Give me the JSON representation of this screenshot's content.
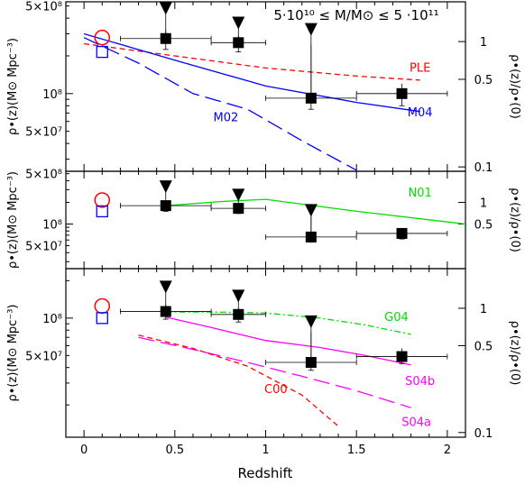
{
  "chart_data": {
    "type": "scatter",
    "x_axis": {
      "label": "Redshift",
      "range": [
        -0.1,
        2.1
      ],
      "ticks": [
        0,
        0.5,
        1,
        1.5,
        2
      ],
      "tick_labels": [
        "0",
        "0.5",
        "1",
        "1.5",
        "2"
      ]
    },
    "right_axis": {
      "label": "ρ•(z)/ρ•(0)",
      "tick_values": [
        1,
        0.5,
        0.1
      ],
      "tick_labels": [
        "1",
        "0.5",
        "0.1"
      ]
    },
    "panels": [
      {
        "title": "5·10¹⁰ ≤ M/M⊙ ≤ 5 ·10¹¹",
        "ylabel": "ρ•(z)(M⊙ Mpc⁻³)",
        "ylim": [
          24000000,
          540000000
        ],
        "left_ticks": [
          {
            "value": 500000000,
            "label": "5×10⁸"
          },
          {
            "value": 100000000,
            "label": "10⁸"
          },
          {
            "value": 50000000,
            "label": "5×10⁷"
          }
        ],
        "right_ticks": [
          {
            "value": 260000000,
            "label": "1"
          },
          {
            "value": 130000000,
            "label": "0.5"
          },
          {
            "value": 26000000,
            "label": "0.1"
          }
        ],
        "local_circle": {
          "x": 0.1,
          "y": 280000000
        },
        "local_square": {
          "x": 0.1,
          "y": 215000000
        },
        "points": [
          {
            "x": 0.45,
            "y": 275000000,
            "xerr": [
              0.2,
              0.7
            ],
            "yerr": [
              225000000,
              320000000
            ],
            "upper": 470000000
          },
          {
            "x": 0.85,
            "y": 255000000,
            "xerr": [
              0.7,
              1.0
            ],
            "yerr": [
              215000000,
              290000000
            ],
            "upper": 360000000
          },
          {
            "x": 1.25,
            "y": 92000000,
            "xerr": [
              1.0,
              1.5
            ],
            "yerr": [
              75000000,
              245000000
            ],
            "upper": 320000000
          },
          {
            "x": 1.75,
            "y": 100000000,
            "xerr": [
              1.5,
              2.0
            ],
            "yerr": [
              80000000,
              120000000
            ],
            "upper": null
          }
        ],
        "models": [
          {
            "name": "PLE",
            "color": "#ff0000",
            "dash": "6,4",
            "x": [
              0,
              0.5,
              1,
              1.5,
              1.85
            ],
            "y": [
              250000000,
              200000000,
              160000000,
              138000000,
              128000000
            ]
          },
          {
            "name": "M04",
            "color": "#0000ff",
            "dash": "",
            "x": [
              0,
              0.5,
              1,
              1.5,
              1.85
            ],
            "y": [
              300000000,
              185000000,
              115000000,
              85000000,
              72000000
            ]
          },
          {
            "name": "M02",
            "color": "#0000ff",
            "dash": "18,7",
            "x": [
              0,
              0.3,
              0.6,
              0.9,
              1.2,
              1.5
            ],
            "y": [
              280000000,
              175000000,
              100000000,
              75000000,
              42000000,
              24500000
            ]
          }
        ]
      },
      {
        "title": "",
        "ylabel": "ρ•(z)(M⊙ Mpc⁻³)",
        "ylim": [
          24000000,
          540000000
        ],
        "left_ticks": [
          {
            "value": 500000000,
            "label": "5×10⁸"
          },
          {
            "value": 100000000,
            "label": "10⁸"
          },
          {
            "value": 50000000,
            "label": "5×10⁷"
          }
        ],
        "right_ticks": [
          {
            "value": 200000000,
            "label": "1"
          },
          {
            "value": 100000000,
            "label": "0.5"
          }
        ],
        "local_circle": {
          "x": 0.1,
          "y": 215000000
        },
        "local_square": {
          "x": 0.1,
          "y": 150000000
        },
        "points": [
          {
            "x": 0.45,
            "y": 180000000,
            "xerr": [
              0.2,
              0.7
            ],
            "yerr": [
              150000000,
              210000000
            ],
            "upper": 320000000
          },
          {
            "x": 0.85,
            "y": 165000000,
            "xerr": [
              0.7,
              1.0
            ],
            "yerr": [
              140000000,
              190000000
            ],
            "upper": 245000000
          },
          {
            "x": 1.25,
            "y": 66000000,
            "xerr": [
              1.0,
              1.5
            ],
            "yerr": [
              56000000,
              160000000
            ],
            "upper": 150000000
          },
          {
            "x": 1.75,
            "y": 74000000,
            "xerr": [
              1.5,
              2.0
            ],
            "yerr": [
              62000000,
              88000000
            ],
            "upper": null
          }
        ],
        "models": [
          {
            "name": "N01",
            "color": "#00dd00",
            "dash": "",
            "x": [
              0.45,
              0.75,
              1.0,
              1.5,
              2.1
            ],
            "y": [
              180000000,
              205000000,
              220000000,
              150000000,
              100000000
            ]
          }
        ]
      },
      {
        "title": "",
        "ylabel": "ρ•(z)(M⊙ Mpc⁻³)",
        "ylim": [
          11000000,
          250000000
        ],
        "left_ticks": [
          {
            "value": 100000000,
            "label": "10⁸"
          },
          {
            "value": 50000000,
            "label": "5×10⁷"
          }
        ],
        "right_ticks": [
          {
            "value": 120000000,
            "label": "1"
          },
          {
            "value": 60000000,
            "label": "0.5"
          },
          {
            "value": 12000000,
            "label": "0.1"
          }
        ],
        "local_circle": {
          "x": 0.1,
          "y": 125000000
        },
        "local_square": {
          "x": 0.1,
          "y": 100000000
        },
        "points": [
          {
            "x": 0.45,
            "y": 113000000,
            "xerr": [
              0.2,
              0.7
            ],
            "yerr": [
              98000000,
              128000000
            ],
            "upper": 175000000
          },
          {
            "x": 0.85,
            "y": 107000000,
            "xerr": [
              0.7,
              1.0
            ],
            "yerr": [
              93000000,
              120000000
            ],
            "upper": 148000000
          },
          {
            "x": 1.25,
            "y": 44000000,
            "xerr": [
              1.0,
              1.5
            ],
            "yerr": [
              38000000,
              77000000
            ],
            "upper": 92000000
          },
          {
            "x": 1.75,
            "y": 49000000,
            "xerr": [
              1.5,
              2.0
            ],
            "yerr": [
              43000000,
              57000000
            ],
            "upper": null
          }
        ],
        "models": [
          {
            "name": "G04",
            "color": "#00dd00",
            "dash": "7,3,2,3",
            "x": [
              0.45,
              0.7,
              1.0,
              1.3,
              1.55,
              1.8
            ],
            "y": [
              112000000,
              112000000,
              110000000,
              100000000,
              88000000,
              74000000
            ]
          },
          {
            "name": "S04b",
            "color": "#ff00ff",
            "dash": "",
            "x": [
              0.45,
              0.7,
              1.0,
              1.3,
              1.55,
              1.8
            ],
            "y": [
              102000000,
              84000000,
              66000000,
              58000000,
              50000000,
              42000000
            ]
          },
          {
            "name": "S04a",
            "color": "#ff00ff",
            "dash": "18,7",
            "x": [
              0.3,
              0.6,
              0.9,
              1.2,
              1.5,
              1.8
            ],
            "y": [
              70000000,
              56000000,
              44000000,
              34000000,
              26000000,
              19000000
            ]
          },
          {
            "name": "C00",
            "color": "#ff0000",
            "dash": "6,4",
            "x": [
              0.3,
              0.6,
              0.9,
              1.2,
              1.4
            ],
            "y": [
              73000000,
              57000000,
              41000000,
              24000000,
              13500000
            ]
          }
        ]
      }
    ]
  }
}
